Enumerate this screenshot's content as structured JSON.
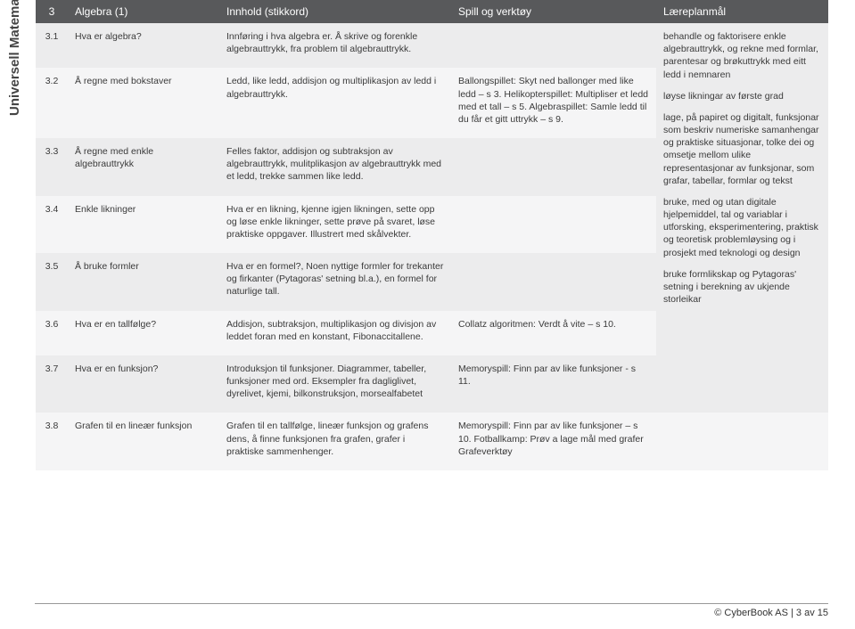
{
  "sidebar_label": "Universell Matematikk Ungdom",
  "header": {
    "num": "3",
    "topic": "Algebra (1)",
    "desc": "Innhold (stikkord)",
    "tools": "Spill og verktøy",
    "goals": "Læreplanmål"
  },
  "rows": [
    {
      "num": "3.1",
      "topic": "Hva er algebra?",
      "desc": "Innføring i hva algebra er. Å skrive og forenkle algebrauttrykk, fra problem til algebrauttrykk.",
      "tools": ""
    },
    {
      "num": "3.2",
      "topic": "Å regne med bokstaver",
      "desc": "Ledd, like ledd, addisjon og multiplikasjon av ledd i algebrauttrykk.",
      "tools": "Ballongspillet: Skyt ned ballonger med like ledd – s 3. Helikopterspillet: Multipliser et ledd med et tall – s 5. Algebraspillet: Samle ledd til du får et gitt uttrykk – s 9."
    },
    {
      "num": "3.3",
      "topic": "Å regne med enkle algebrauttrykk",
      "desc": "Felles faktor, addisjon og subtraksjon av algebrauttrykk, mulitplikasjon av algebrauttrykk med et ledd, trekke sammen like ledd.",
      "tools": ""
    },
    {
      "num": "3.4",
      "topic": "Enkle likninger",
      "desc": "Hva er en likning, kjenne igjen likningen, sette opp og løse enkle likninger, sette prøve på svaret, løse praktiske oppgaver. Illustrert med skålvekter.",
      "tools": ""
    },
    {
      "num": "3.5",
      "topic": "Å bruke formler",
      "desc": "Hva er en formel?, Noen nyttige formler for trekanter og firkanter (Pytagoras' setning bl.a.), en formel for naturlige tall.",
      "tools": ""
    },
    {
      "num": "3.6",
      "topic": "Hva er en tallfølge?",
      "desc": "Addisjon, subtraksjon, multiplikasjon og divisjon av leddet foran med en konstant, Fibonaccitallene.",
      "tools": "Collatz algoritmen:  Verdt å vite – s 10."
    },
    {
      "num": "3.7",
      "topic": "Hva er en funksjon?",
      "desc": "Introduksjon til funksjoner. Diagrammer, tabeller, funksjoner med ord. Eksempler fra dagliglivet, dyrelivet, kjemi, bilkonstruksjon, morsealfabetet",
      "tools": "Memoryspill: Finn par av like funksjoner  - s 11."
    },
    {
      "num": "3.8",
      "topic": "Grafen til en lineær funksjon",
      "desc": "Grafen til en tallfølge, lineær funksjon og grafens dens, å finne funksjonen fra grafen, grafer i praktiske sammenhenger.",
      "tools": "Memoryspill: Finn par av like funksjoner – s 10. Fotballkamp: Prøv a lage mål med grafer Grafeverktøy"
    }
  ],
  "goals": [
    "behandle og faktorisere enkle algebrauttrykk, og rekne med formlar, parentesar og brøkuttrykk med eitt ledd i nemnaren",
    "løyse likningar av første grad",
    "lage, på papiret og digitalt, funksjonar som beskriv numeriske samanhengar og praktiske situasjonar, tolke dei og omsetje mellom ulike representasjonar av funksjonar, som grafar, tabellar, formlar og tekst",
    "bruke, med og utan digitale hjelpemiddel, tal og variablar i utforsking, eksperimentering, praktisk og teoretisk problemløysing og i prosjekt med teknologi og design",
    "bruke formlikskap og Pytagoras' setning i berekning av ukjende storleikar"
  ],
  "footer": "© CyberBook AS | 3 av 15"
}
